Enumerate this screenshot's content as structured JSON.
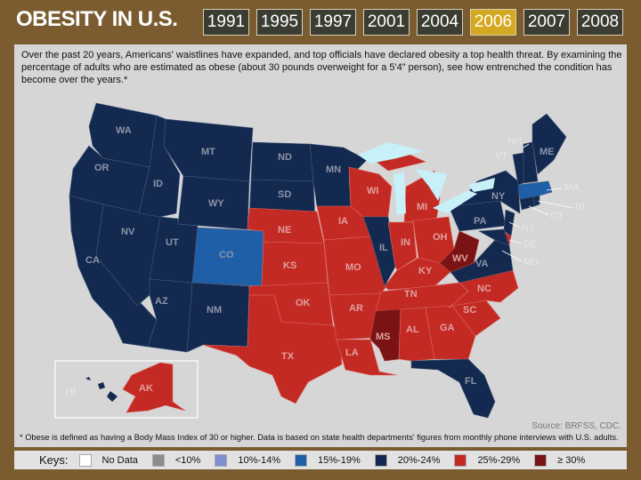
{
  "title": "OBESITY IN U.S.",
  "years": [
    "1991",
    "1995",
    "1997",
    "2001",
    "2004",
    "2006",
    "2007",
    "2008"
  ],
  "selected_year": "2006",
  "intro": "Over the past 20 years, Americans' waistlines have expanded, and top officials have declared obesity a top health threat. By examining the percentage of adults who are estimated as obese (about 30 pounds overweight for a 5'4\" person), see how entrenched the condition has become over the years.*",
  "source": "Source: BRFSS, CDC.",
  "footnote": "* Obese is defined as having a Body Mass Index of 30 or higher. Data is based on state health departments' figures from monthly phone interviews with U.S. adults.",
  "keys": {
    "title": "Keys:",
    "items": [
      {
        "label": "No Data",
        "color": "#ffffff"
      },
      {
        "label": "<10%",
        "color": "#8c8c8c"
      },
      {
        "label": "10%-14%",
        "color": "#7f8fce"
      },
      {
        "label": "15%-19%",
        "color": "#1f5fa8"
      },
      {
        "label": "20%-24%",
        "color": "#13294f"
      },
      {
        "label": "25%-29%",
        "color": "#c42a24"
      },
      {
        "label": "≥ 30%",
        "color": "#7a1414"
      }
    ]
  },
  "colors": {
    "c20": "#13294f",
    "c25": "#c42a24",
    "c30": "#7a1414",
    "c15": "#1f5fa8",
    "lakes": "#c8f0f8"
  },
  "state_classes": {
    "WA": "20%-24%",
    "OR": "20%-24%",
    "CA": "20%-24%",
    "NV": "20%-24%",
    "ID": "20%-24%",
    "MT": "20%-24%",
    "WY": "20%-24%",
    "UT": "20%-24%",
    "AZ": "20%-24%",
    "NM": "20%-24%",
    "CO": "15%-19%",
    "ND": "20%-24%",
    "SD": "20%-24%",
    "MN": "20%-24%",
    "IL": "20%-24%",
    "NY": "20%-24%",
    "PA": "20%-24%",
    "NJ": "20%-24%",
    "VA": "20%-24%",
    "MD": "20%-24%",
    "FL": "20%-24%",
    "HI": "20%-24%",
    "VT": "20%-24%",
    "NH": "20%-24%",
    "ME": "20%-24%",
    "MA": "15%-19%",
    "CT": "20%-24%",
    "RI": "20%-24%",
    "NE": "25%-29%",
    "KS": "25%-29%",
    "OK": "25%-29%",
    "TX": "25%-29%",
    "IA": "25%-29%",
    "MO": "25%-29%",
    "AR": "25%-29%",
    "LA": "25%-29%",
    "WI": "25%-29%",
    "MI": "25%-29%",
    "IN": "25%-29%",
    "OH": "25%-29%",
    "KY": "25%-29%",
    "TN": "25%-29%",
    "AL": "25%-29%",
    "GA": "25%-29%",
    "SC": "25%-29%",
    "NC": "25%-29%",
    "DE": "25%-29%",
    "AK": "25%-29%",
    "MS": "≥ 30%",
    "WV": "≥ 30%"
  },
  "labels": {
    "WA": "WA",
    "OR": "OR",
    "CA": "CA",
    "NV": "NV",
    "ID": "ID",
    "MT": "MT",
    "WY": "WY",
    "UT": "UT",
    "AZ": "AZ",
    "NM": "NM",
    "CO": "CO",
    "ND": "ND",
    "SD": "SD",
    "NE": "NE",
    "KS": "KS",
    "OK": "OK",
    "TX": "TX",
    "MN": "MN",
    "IA": "IA",
    "MO": "MO",
    "AR": "AR",
    "LA": "LA",
    "WI": "WI",
    "IL": "IL",
    "MI": "MI",
    "IN": "IN",
    "OH": "OH",
    "KY": "KY",
    "TN": "TN",
    "MS": "MS",
    "AL": "AL",
    "GA": "GA",
    "FL": "FL",
    "SC": "SC",
    "NC": "NC",
    "VA": "VA",
    "WV": "WV",
    "PA": "PA",
    "NY": "NY",
    "NJ": "NJ",
    "DE": "DE",
    "MD": "MD",
    "CT": "CT",
    "RI": "RI",
    "MA": "MA",
    "VT": "VT",
    "NH": "NH",
    "ME": "ME",
    "HI": "HI",
    "AK": "AK"
  }
}
